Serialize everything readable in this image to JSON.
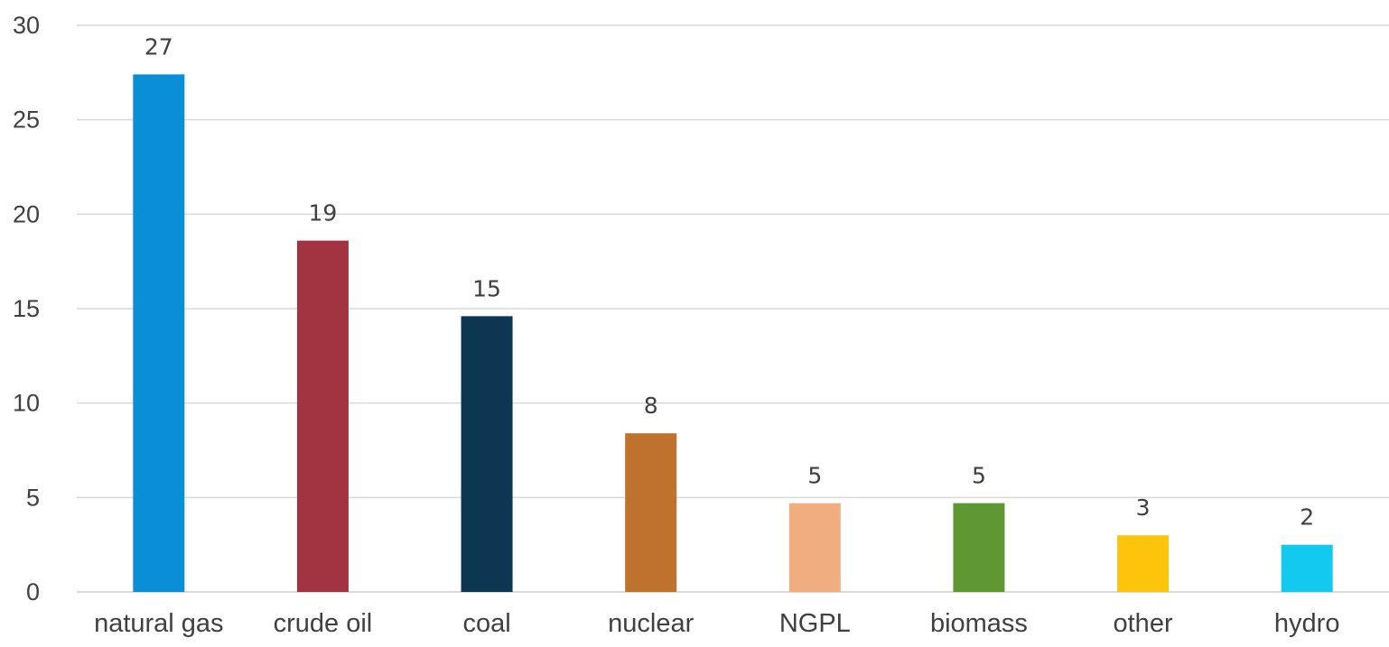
{
  "chart_data": {
    "type": "bar",
    "categories": [
      "natural gas",
      "crude oil",
      "coal",
      "nuclear",
      "NGPL",
      "biomass",
      "other",
      "hydro"
    ],
    "values": [
      27.4,
      18.6,
      14.6,
      8.4,
      4.7,
      4.7,
      3.0,
      2.5
    ],
    "data_labels": [
      "27",
      "19",
      "15",
      "8",
      "5",
      "5",
      "3",
      "2"
    ],
    "colors": [
      "#0a8fd6",
      "#a23441",
      "#0d3653",
      "#bf722d",
      "#f0ae80",
      "#5f9733",
      "#fdc40c",
      "#13c9ee"
    ],
    "title": "",
    "xlabel": "",
    "ylabel": "",
    "ylim": [
      0,
      30
    ],
    "yticks": [
      0,
      5,
      10,
      15,
      20,
      25,
      30
    ],
    "grid": true,
    "legend": "none"
  }
}
